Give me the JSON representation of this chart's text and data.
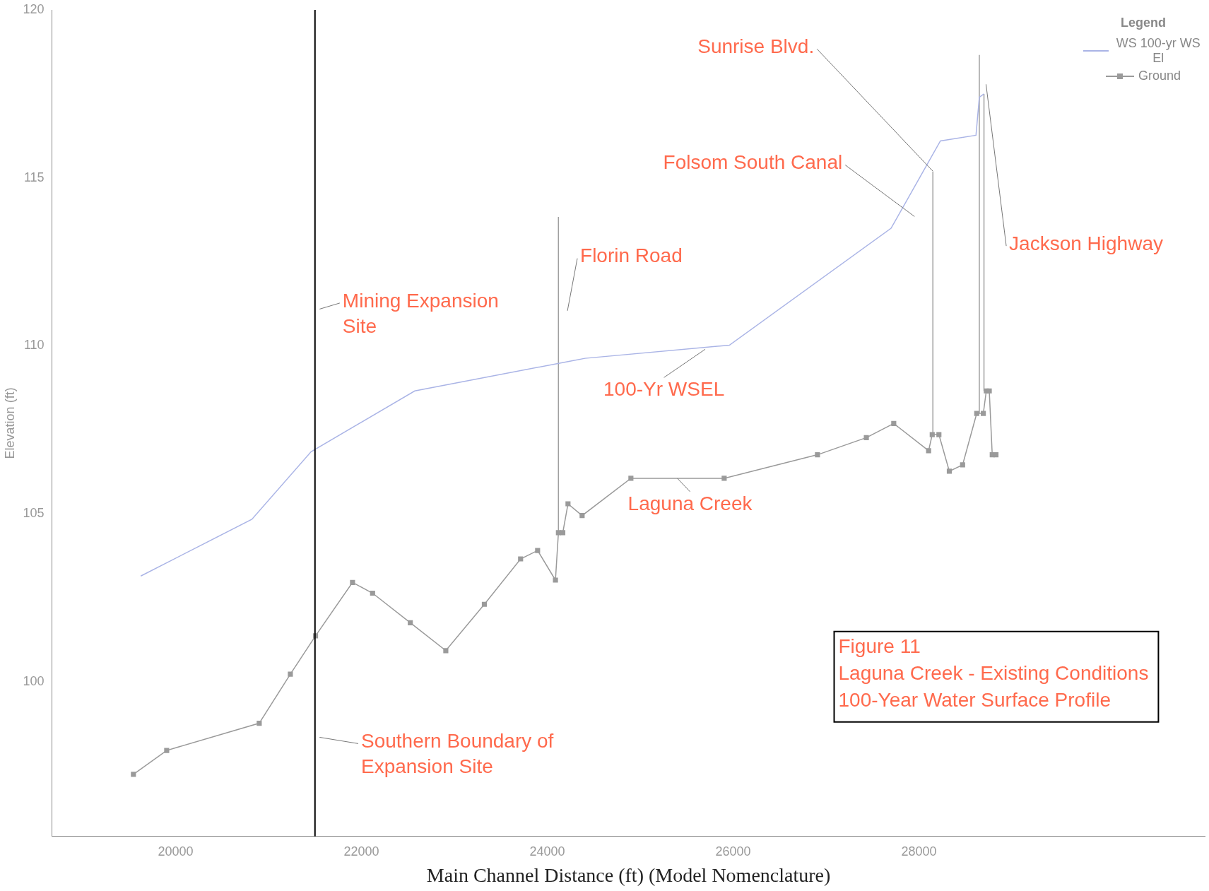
{
  "chart_data": {
    "type": "line",
    "title": "Figure 11",
    "subtitle": "Laguna Creek - Existing Conditions",
    "xlabel": "Main Channel Distance (ft) (Model Nomenclature)",
    "ylabel": "Elevation (ft)",
    "legend_title": "Legend",
    "legend": "top right",
    "grid": false,
    "xlim": [
      18670,
      31080
    ],
    "xticks": [
      20000,
      22000,
      24000,
      26000,
      28000
    ],
    "ylim": [
      95.4,
      120
    ],
    "yticks": [
      100,
      105,
      110,
      115,
      120
    ],
    "series": [
      {
        "name": "WS  100-yr WS El",
        "color": "#aab4e6",
        "marker": "none",
        "x": [
          19625,
          20821,
          21458,
          22574,
          24406,
          25960,
          27700,
          28231,
          28614,
          28650,
          28700
        ],
        "values": [
          103.15,
          104.84,
          106.85,
          108.66,
          109.63,
          110.02,
          113.5,
          116.1,
          116.27,
          117.4,
          117.5
        ]
      },
      {
        "name": "Ground",
        "color": "#9a9a9a",
        "marker": "square",
        "x": [
          19546,
          19904,
          20900,
          21235,
          21506,
          21904,
          22120,
          22526,
          22908,
          23323,
          23713,
          23896,
          24088,
          24120,
          24167,
          24223,
          24375,
          24900,
          25904,
          26908,
          27434,
          27729,
          28104,
          28143,
          28215,
          28327,
          28470,
          28622,
          28693,
          28725,
          28757,
          28789,
          28829
        ],
        "values": [
          97.25,
          97.96,
          98.77,
          100.23,
          101.37,
          102.96,
          102.64,
          101.76,
          100.93,
          102.31,
          103.66,
          103.91,
          103.03,
          104.44,
          104.44,
          105.3,
          104.95,
          106.06,
          106.06,
          106.76,
          107.27,
          107.69,
          106.88,
          107.36,
          107.36,
          106.27,
          106.46,
          107.99,
          107.99,
          108.66,
          108.66,
          106.76,
          106.76
        ]
      },
      {
        "color": "#a0a0a0",
        "marker": "none",
        "x": [
          24120,
          24120,
          24130,
          28150,
          28150,
          28160,
          28650,
          28650,
          28660,
          28700,
          28700
        ],
        "values": [
          104.44,
          113.84,
          null,
          107.36,
          115.19,
          null,
          107.99,
          118.66,
          null,
          108.66,
          117.5
        ]
      }
    ],
    "ref_lines": [
      {
        "axis": "x",
        "value": 21500,
        "color": "#000000"
      }
    ],
    "annotations": [
      {
        "text": "Sunrise Blvd.",
        "x": 28150,
        "y": 115.2
      },
      "Folsom South Canal",
      "Florin Road",
      "Mining Expansion Site",
      {
        "text": "100-Yr WSEL",
        "x": 25700,
        "y": 109.9
      },
      "Jackson Highway",
      {
        "text": "Laguna Creek",
        "x": 25400,
        "y": 106.06
      },
      "Southern Boundary of Expansion Site",
      "100-Year Water Surface Profile"
    ]
  }
}
